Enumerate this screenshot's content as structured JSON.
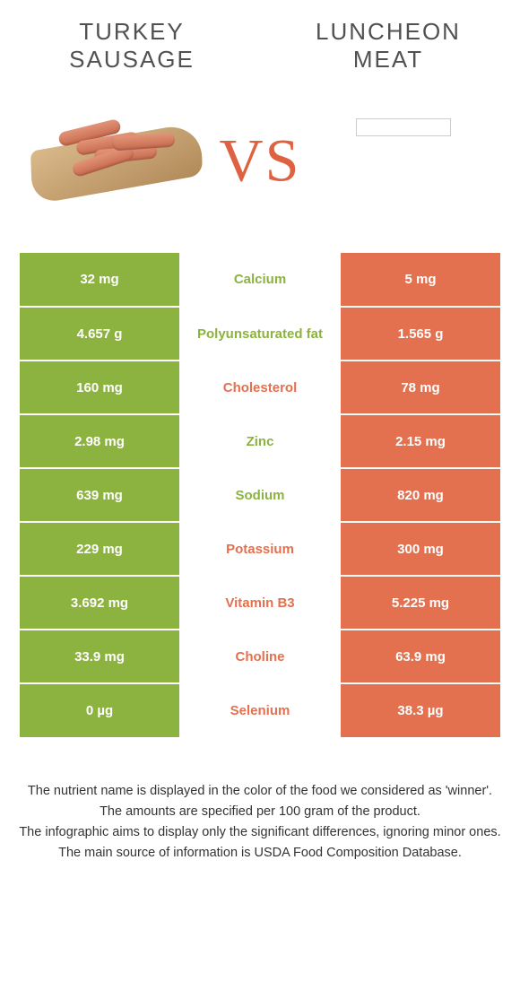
{
  "header": {
    "left_title_line1": "TURKEY",
    "left_title_line2": "SAUSAGE",
    "right_title_line1": "LUNCHEON",
    "right_title_line2": "MEAT"
  },
  "vs_label": "VS",
  "colors": {
    "left_bg": "#8cb23f",
    "right_bg": "#e3704e",
    "vs_color": "#de6241",
    "text_color": "#333333"
  },
  "rows": [
    {
      "left": "32 mg",
      "name": "Calcium",
      "right": "5 mg",
      "winner": "left"
    },
    {
      "left": "4.657 g",
      "name": "Polyunsaturated fat",
      "right": "1.565 g",
      "winner": "left"
    },
    {
      "left": "160 mg",
      "name": "Cholesterol",
      "right": "78 mg",
      "winner": "right"
    },
    {
      "left": "2.98 mg",
      "name": "Zinc",
      "right": "2.15 mg",
      "winner": "left"
    },
    {
      "left": "639 mg",
      "name": "Sodium",
      "right": "820 mg",
      "winner": "left"
    },
    {
      "left": "229 mg",
      "name": "Potassium",
      "right": "300 mg",
      "winner": "right"
    },
    {
      "left": "3.692 mg",
      "name": "Vitamin B3",
      "right": "5.225 mg",
      "winner": "right"
    },
    {
      "left": "33.9 mg",
      "name": "Choline",
      "right": "63.9 mg",
      "winner": "right"
    },
    {
      "left": "0 µg",
      "name": "Selenium",
      "right": "38.3 µg",
      "winner": "right"
    }
  ],
  "footnotes": [
    "The nutrient name is displayed in the color of the food we considered as 'winner'.",
    "The amounts are specified per 100 gram of the product.",
    "The infographic aims to display only the significant differences, ignoring minor ones.",
    "The main source of information is USDA Food Composition Database."
  ]
}
